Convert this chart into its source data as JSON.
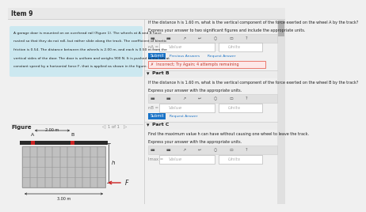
{
  "title": "Item 9",
  "bg_color": "#f0f0f0",
  "white": "#ffffff",
  "text_color": "#222222",
  "light_blue_bg": "#cce8f0",
  "panel_bg": "#f8f8f8",
  "problem_text_lines": [
    "A garage door is mounted on an overhead rail (Figure 1). The wheels at A and B have",
    "rusted so that they do not roll, but rather slide along the track. The coefficient of kinetic",
    "friction is 0.54. The distance between the wheels is 2.00 m, and each is 0.50 m from the",
    "vertical sides of the door. The door is uniform and weighs 900 N. It is pushed to the left at",
    "constant speed by a horizontal force F, that is applied as shown in the figure."
  ],
  "figure_label": "Figure",
  "page_label": "1 of 1",
  "partA_q1": "If the distance h is 1.60 m, what is the vertical component of the force exerted on the wheel A by the track?",
  "partA_q2": "Express your answer to two significant figures and include the appropriate units.",
  "partA_var": "nA =",
  "partB_header": "Part B",
  "partB_q1": "If the distance h is 1.60 m, what is the vertical component of the force exerted on the wheel B by the track?",
  "partB_q2": "Express your answer with the appropriate units.",
  "partB_var": "nB =",
  "partC_header": "Part C",
  "partC_q1": "Find the maximum value h can have without causing one wheel to leave the track.",
  "partC_q2": "Express your answer with the appropriate units.",
  "partC_var": "lmax =",
  "submit_color": "#1a73c7",
  "error_bg": "#fde8e8",
  "error_border": "#e74c3c",
  "error_text": "✗  Incorrect; Try Again; 4 attempts remaining",
  "door_color": "#c0c0c0",
  "door_stripe_color": "#a8a8a8",
  "track_color": "#2a2a2a",
  "wheel_color": "#cc2222",
  "arrow_color": "#cc2222",
  "dim_color": "#222222",
  "divider_color": "#cccccc",
  "toolbar_bg": "#e0e0e0",
  "input_border": "#aaaaaa",
  "link_color": "#1a73c7"
}
